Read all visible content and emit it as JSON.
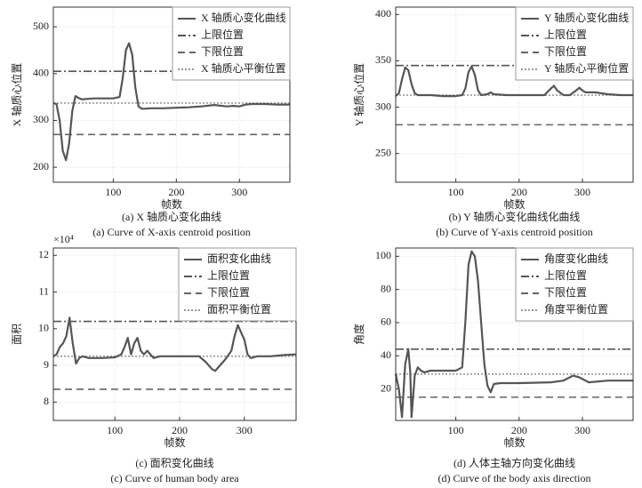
{
  "chart_data": [
    {
      "type": "line",
      "xlabel": "帧数",
      "ylabel": "X 轴质心位置",
      "caption_zh": "(a) X 轴质心变化曲线",
      "caption_en": "(a) Curve of X-axis centroid position",
      "xlim": [
        5,
        380
      ],
      "ylim": [
        168,
        542
      ],
      "xticks": [
        100,
        200,
        300
      ],
      "yticks": [
        200,
        300,
        400,
        500
      ],
      "grid": true,
      "x": [
        5,
        10,
        15,
        20,
        25,
        30,
        35,
        40,
        45,
        50,
        60,
        70,
        80,
        90,
        100,
        110,
        115,
        120,
        125,
        130,
        135,
        140,
        145,
        150,
        160,
        180,
        200,
        220,
        240,
        260,
        280,
        290,
        300,
        310,
        320,
        340,
        360,
        380
      ],
      "series": [
        {
          "name": "X 轴质心变化曲线",
          "color": "#555555",
          "values": [
            337,
            335,
            300,
            235,
            215,
            250,
            320,
            352,
            348,
            345,
            346,
            347,
            347,
            347,
            347,
            350,
            390,
            450,
            465,
            440,
            370,
            330,
            325,
            325,
            326,
            326,
            327,
            328,
            330,
            333,
            330,
            331,
            330,
            334,
            335,
            335,
            334,
            334
          ]
        }
      ],
      "reference_lines": [
        {
          "name": "上限位置",
          "value": 405,
          "dash": "dashdot",
          "color": "#555555"
        },
        {
          "name": "下限位置",
          "value": 270,
          "dash": "dashed",
          "color": "#666666"
        },
        {
          "name": "X 轴质心平衡位置",
          "value": 337,
          "dash": "dotted",
          "color": "#999999"
        }
      ]
    },
    {
      "type": "line",
      "xlabel": "帧数",
      "ylabel": "Y 轴质心位置",
      "caption_zh": "(b) Y 轴质心变化曲线化曲线",
      "caption_en": "(b) Curve of Y-axis centroid position",
      "xlim": [
        5,
        380
      ],
      "ylim": [
        219,
        408
      ],
      "xticks": [
        100,
        200,
        300
      ],
      "yticks": [
        250,
        300,
        350,
        400
      ],
      "grid": true,
      "x": [
        5,
        10,
        15,
        20,
        25,
        30,
        35,
        40,
        60,
        80,
        100,
        110,
        115,
        120,
        125,
        130,
        135,
        140,
        150,
        155,
        160,
        180,
        200,
        220,
        240,
        250,
        255,
        260,
        270,
        280,
        290,
        295,
        300,
        305,
        320,
        340,
        360,
        380
      ],
      "series": [
        {
          "name": "Y 轴质心变化曲线",
          "color": "#555555",
          "values": [
            312,
            315,
            330,
            343,
            340,
            325,
            315,
            313,
            313,
            312,
            312,
            313,
            320,
            338,
            344,
            335,
            318,
            313,
            314,
            316,
            314,
            313,
            313,
            313,
            313,
            320,
            323,
            318,
            313,
            313,
            318,
            321,
            318,
            316,
            316,
            314,
            313,
            313
          ]
        }
      ],
      "reference_lines": [
        {
          "name": "上限位置",
          "value": 345,
          "dash": "dashdot",
          "color": "#555555"
        },
        {
          "name": "下限位置",
          "value": 281,
          "dash": "dashed",
          "color": "#666666"
        },
        {
          "name": "Y 轴质心平衡位置",
          "value": 313,
          "dash": "dotted",
          "color": "#999999"
        }
      ]
    },
    {
      "type": "line",
      "xlabel": "帧数",
      "ylabel": "面积",
      "y_scale_label": "×10⁴",
      "caption_zh": "(c) 面积变化曲线",
      "caption_en": "(c) Curve of human body area",
      "xlim": [
        5,
        380
      ],
      "ylim": [
        7.5,
        12.2
      ],
      "xticks": [
        100,
        200,
        300
      ],
      "yticks": [
        8,
        9,
        10,
        11,
        12
      ],
      "grid": true,
      "x": [
        5,
        10,
        15,
        20,
        25,
        30,
        35,
        40,
        45,
        50,
        60,
        80,
        100,
        110,
        115,
        120,
        125,
        130,
        135,
        140,
        145,
        150,
        160,
        170,
        200,
        230,
        240,
        250,
        255,
        260,
        270,
        280,
        285,
        290,
        295,
        300,
        305,
        310,
        320,
        340,
        360,
        380
      ],
      "series": [
        {
          "name": "面积变化曲线",
          "color": "#555555",
          "values": [
            9.25,
            9.3,
            9.5,
            9.6,
            9.8,
            10.3,
            9.6,
            9.05,
            9.2,
            9.25,
            9.2,
            9.2,
            9.22,
            9.3,
            9.5,
            9.75,
            9.3,
            9.6,
            9.75,
            9.4,
            9.3,
            9.4,
            9.2,
            9.25,
            9.25,
            9.25,
            9.1,
            8.9,
            8.85,
            8.95,
            9.15,
            9.4,
            9.8,
            10.1,
            9.9,
            9.7,
            9.3,
            9.2,
            9.25,
            9.25,
            9.28,
            9.3
          ]
        }
      ],
      "reference_lines": [
        {
          "name": "上限位置",
          "value": 10.2,
          "dash": "dashdot",
          "color": "#555555"
        },
        {
          "name": "下限位置",
          "value": 8.35,
          "dash": "dashed",
          "color": "#666666"
        },
        {
          "name": "面积平衡位置",
          "value": 9.25,
          "dash": "dotted",
          "color": "#999999"
        }
      ]
    },
    {
      "type": "line",
      "xlabel": "帧数",
      "ylabel": "角度",
      "caption_zh": "(d) 人体主轴方向变化曲线",
      "caption_en": "(d) Curve of the body axis direction",
      "xlim": [
        5,
        380
      ],
      "ylim": [
        1,
        105
      ],
      "xticks": [
        100,
        200,
        300
      ],
      "yticks": [
        20,
        40,
        60,
        80,
        100
      ],
      "grid": true,
      "x": [
        5,
        10,
        15,
        20,
        25,
        28,
        30,
        35,
        40,
        45,
        50,
        60,
        80,
        100,
        110,
        115,
        120,
        125,
        130,
        135,
        140,
        145,
        150,
        155,
        160,
        170,
        200,
        250,
        270,
        285,
        295,
        300,
        310,
        340,
        380
      ],
      "series": [
        {
          "name": "角度变化曲线",
          "color": "#555555",
          "values": [
            29,
            20,
            3,
            35,
            44,
            30,
            3,
            28,
            33,
            31,
            30,
            31,
            31,
            31,
            33,
            60,
            95,
            103,
            100,
            85,
            60,
            35,
            22,
            18,
            23,
            23.5,
            23.5,
            24,
            25,
            28,
            27,
            26,
            24,
            25,
            25
          ]
        }
      ],
      "reference_lines": [
        {
          "name": "上限位置",
          "value": 44,
          "dash": "dashdot",
          "color": "#555555"
        },
        {
          "name": "下限位置",
          "value": 15,
          "dash": "dashed",
          "color": "#666666"
        },
        {
          "name": "角度平衡位置",
          "value": 29,
          "dash": "dotted",
          "color": "#999999"
        }
      ]
    }
  ]
}
